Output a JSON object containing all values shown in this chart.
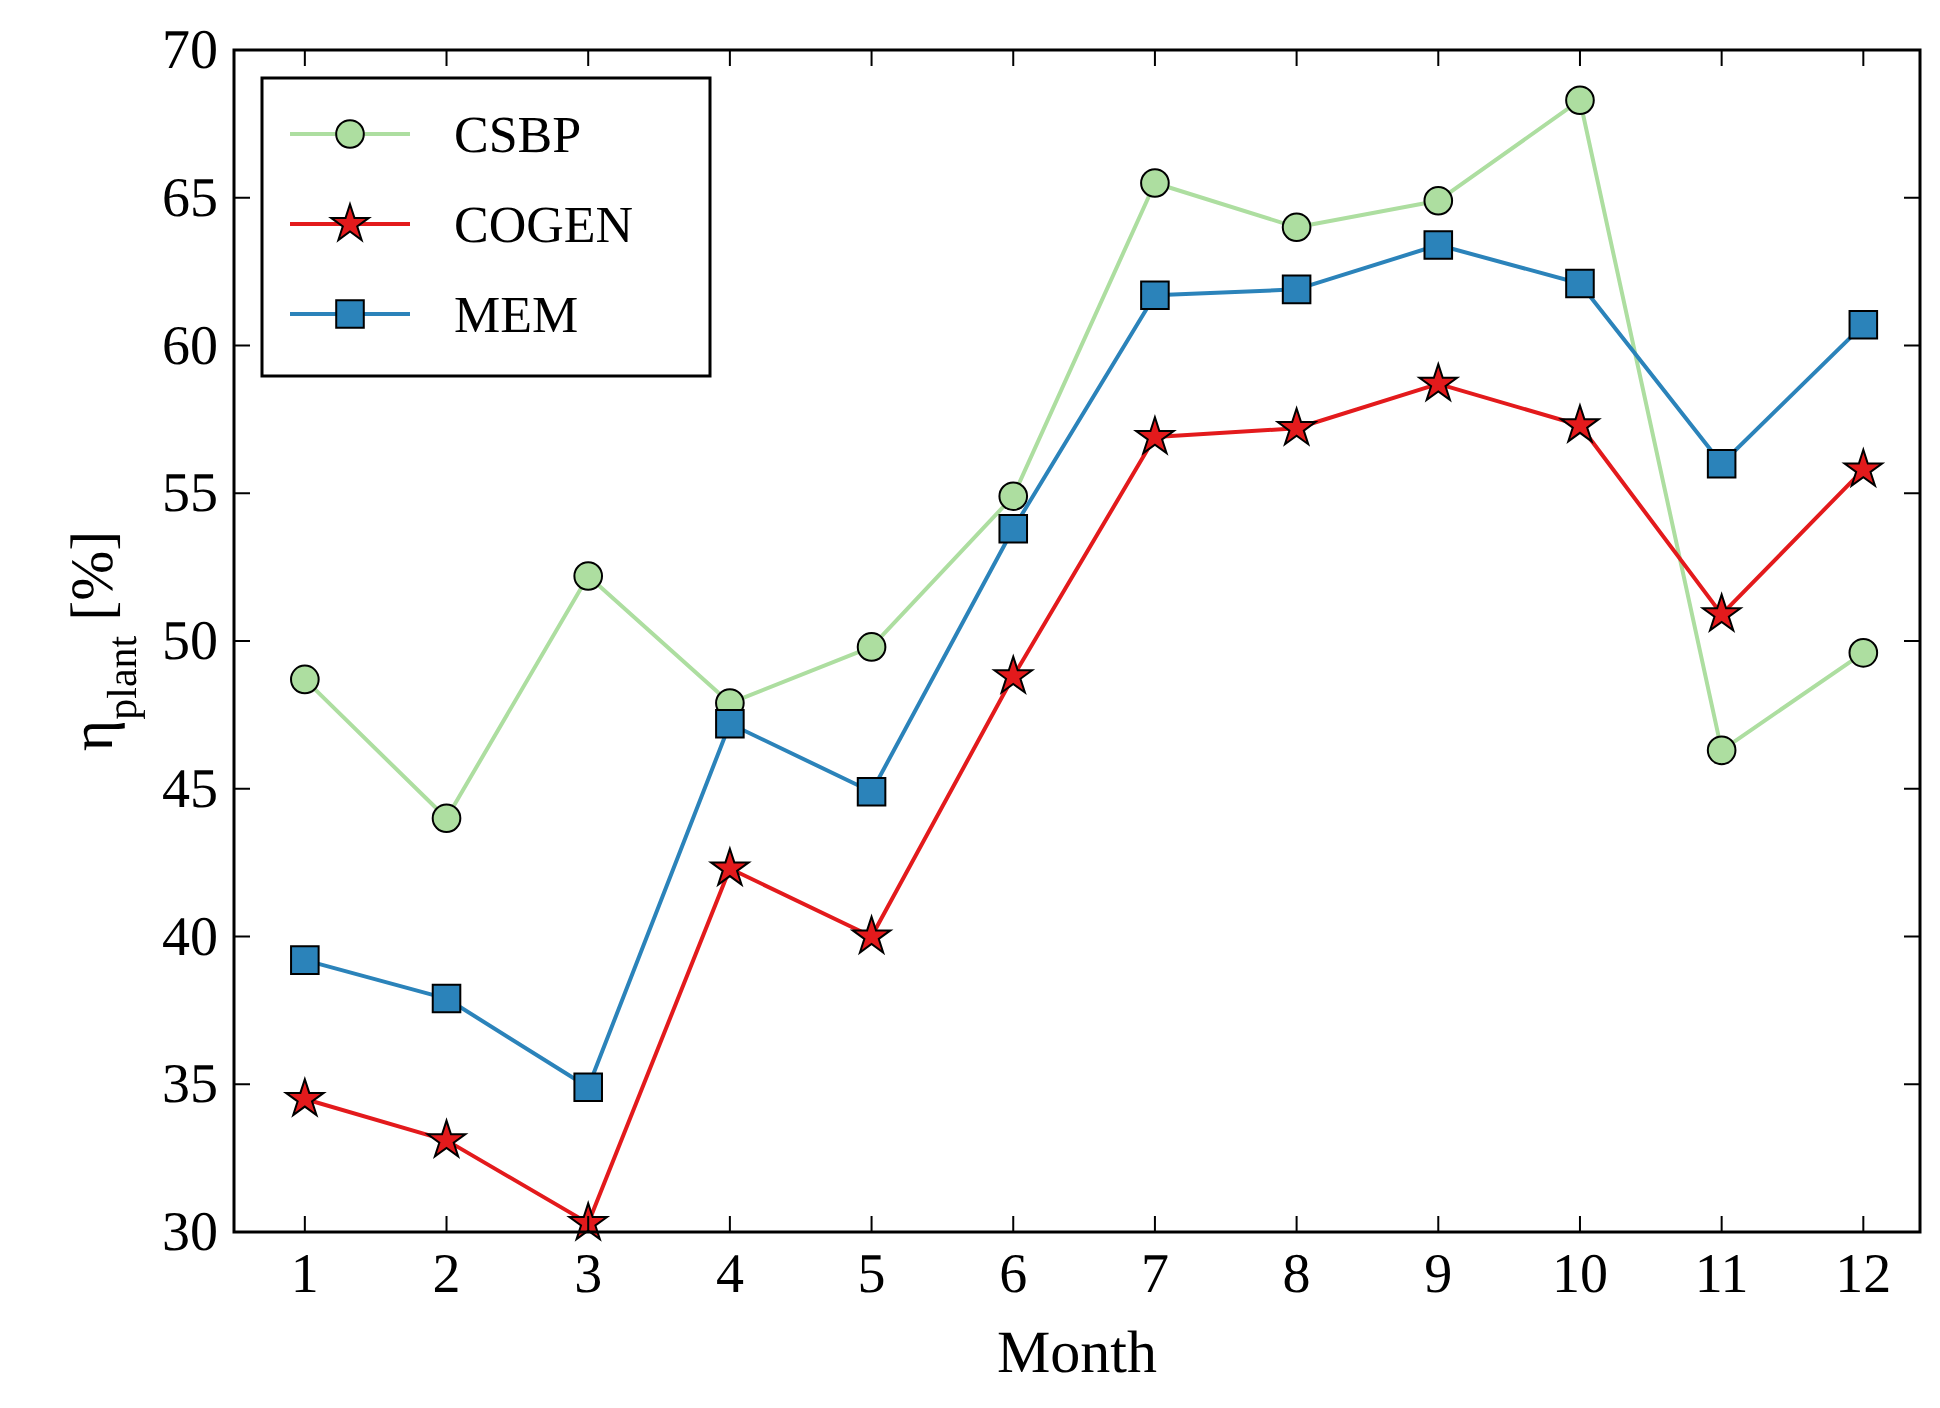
{
  "chart_data": {
    "type": "line",
    "xlabel": "Month",
    "ylabel": "η$_{plant}$ [%]",
    "x": [
      1,
      2,
      3,
      4,
      5,
      6,
      7,
      8,
      9,
      10,
      11,
      12
    ],
    "xlim": [
      0.5,
      12.4
    ],
    "xticks": [
      1,
      2,
      3,
      4,
      5,
      6,
      7,
      8,
      9,
      10,
      11,
      12
    ],
    "ylim": [
      30,
      70
    ],
    "yticks": [
      30,
      35,
      40,
      45,
      50,
      55,
      60,
      65,
      70
    ],
    "legend": "top left",
    "grid": false,
    "series": [
      {
        "name": "CSBP",
        "color": "#addea0",
        "marker": "circle",
        "values": [
          48.7,
          44.0,
          52.2,
          47.9,
          49.8,
          54.9,
          65.5,
          64.0,
          64.9,
          68.3,
          46.3,
          49.6
        ]
      },
      {
        "name": "COGEN",
        "color": "#e31a1c",
        "marker": "star",
        "values": [
          34.5,
          33.1,
          30.3,
          42.3,
          40.0,
          48.8,
          56.9,
          57.2,
          58.7,
          57.3,
          50.9,
          55.8
        ]
      },
      {
        "name": "MEM",
        "color": "#2b83ba",
        "marker": "square",
        "values": [
          39.2,
          37.9,
          34.9,
          47.2,
          44.9,
          53.8,
          61.7,
          61.9,
          63.4,
          62.1,
          56.0,
          60.7
        ]
      }
    ]
  }
}
